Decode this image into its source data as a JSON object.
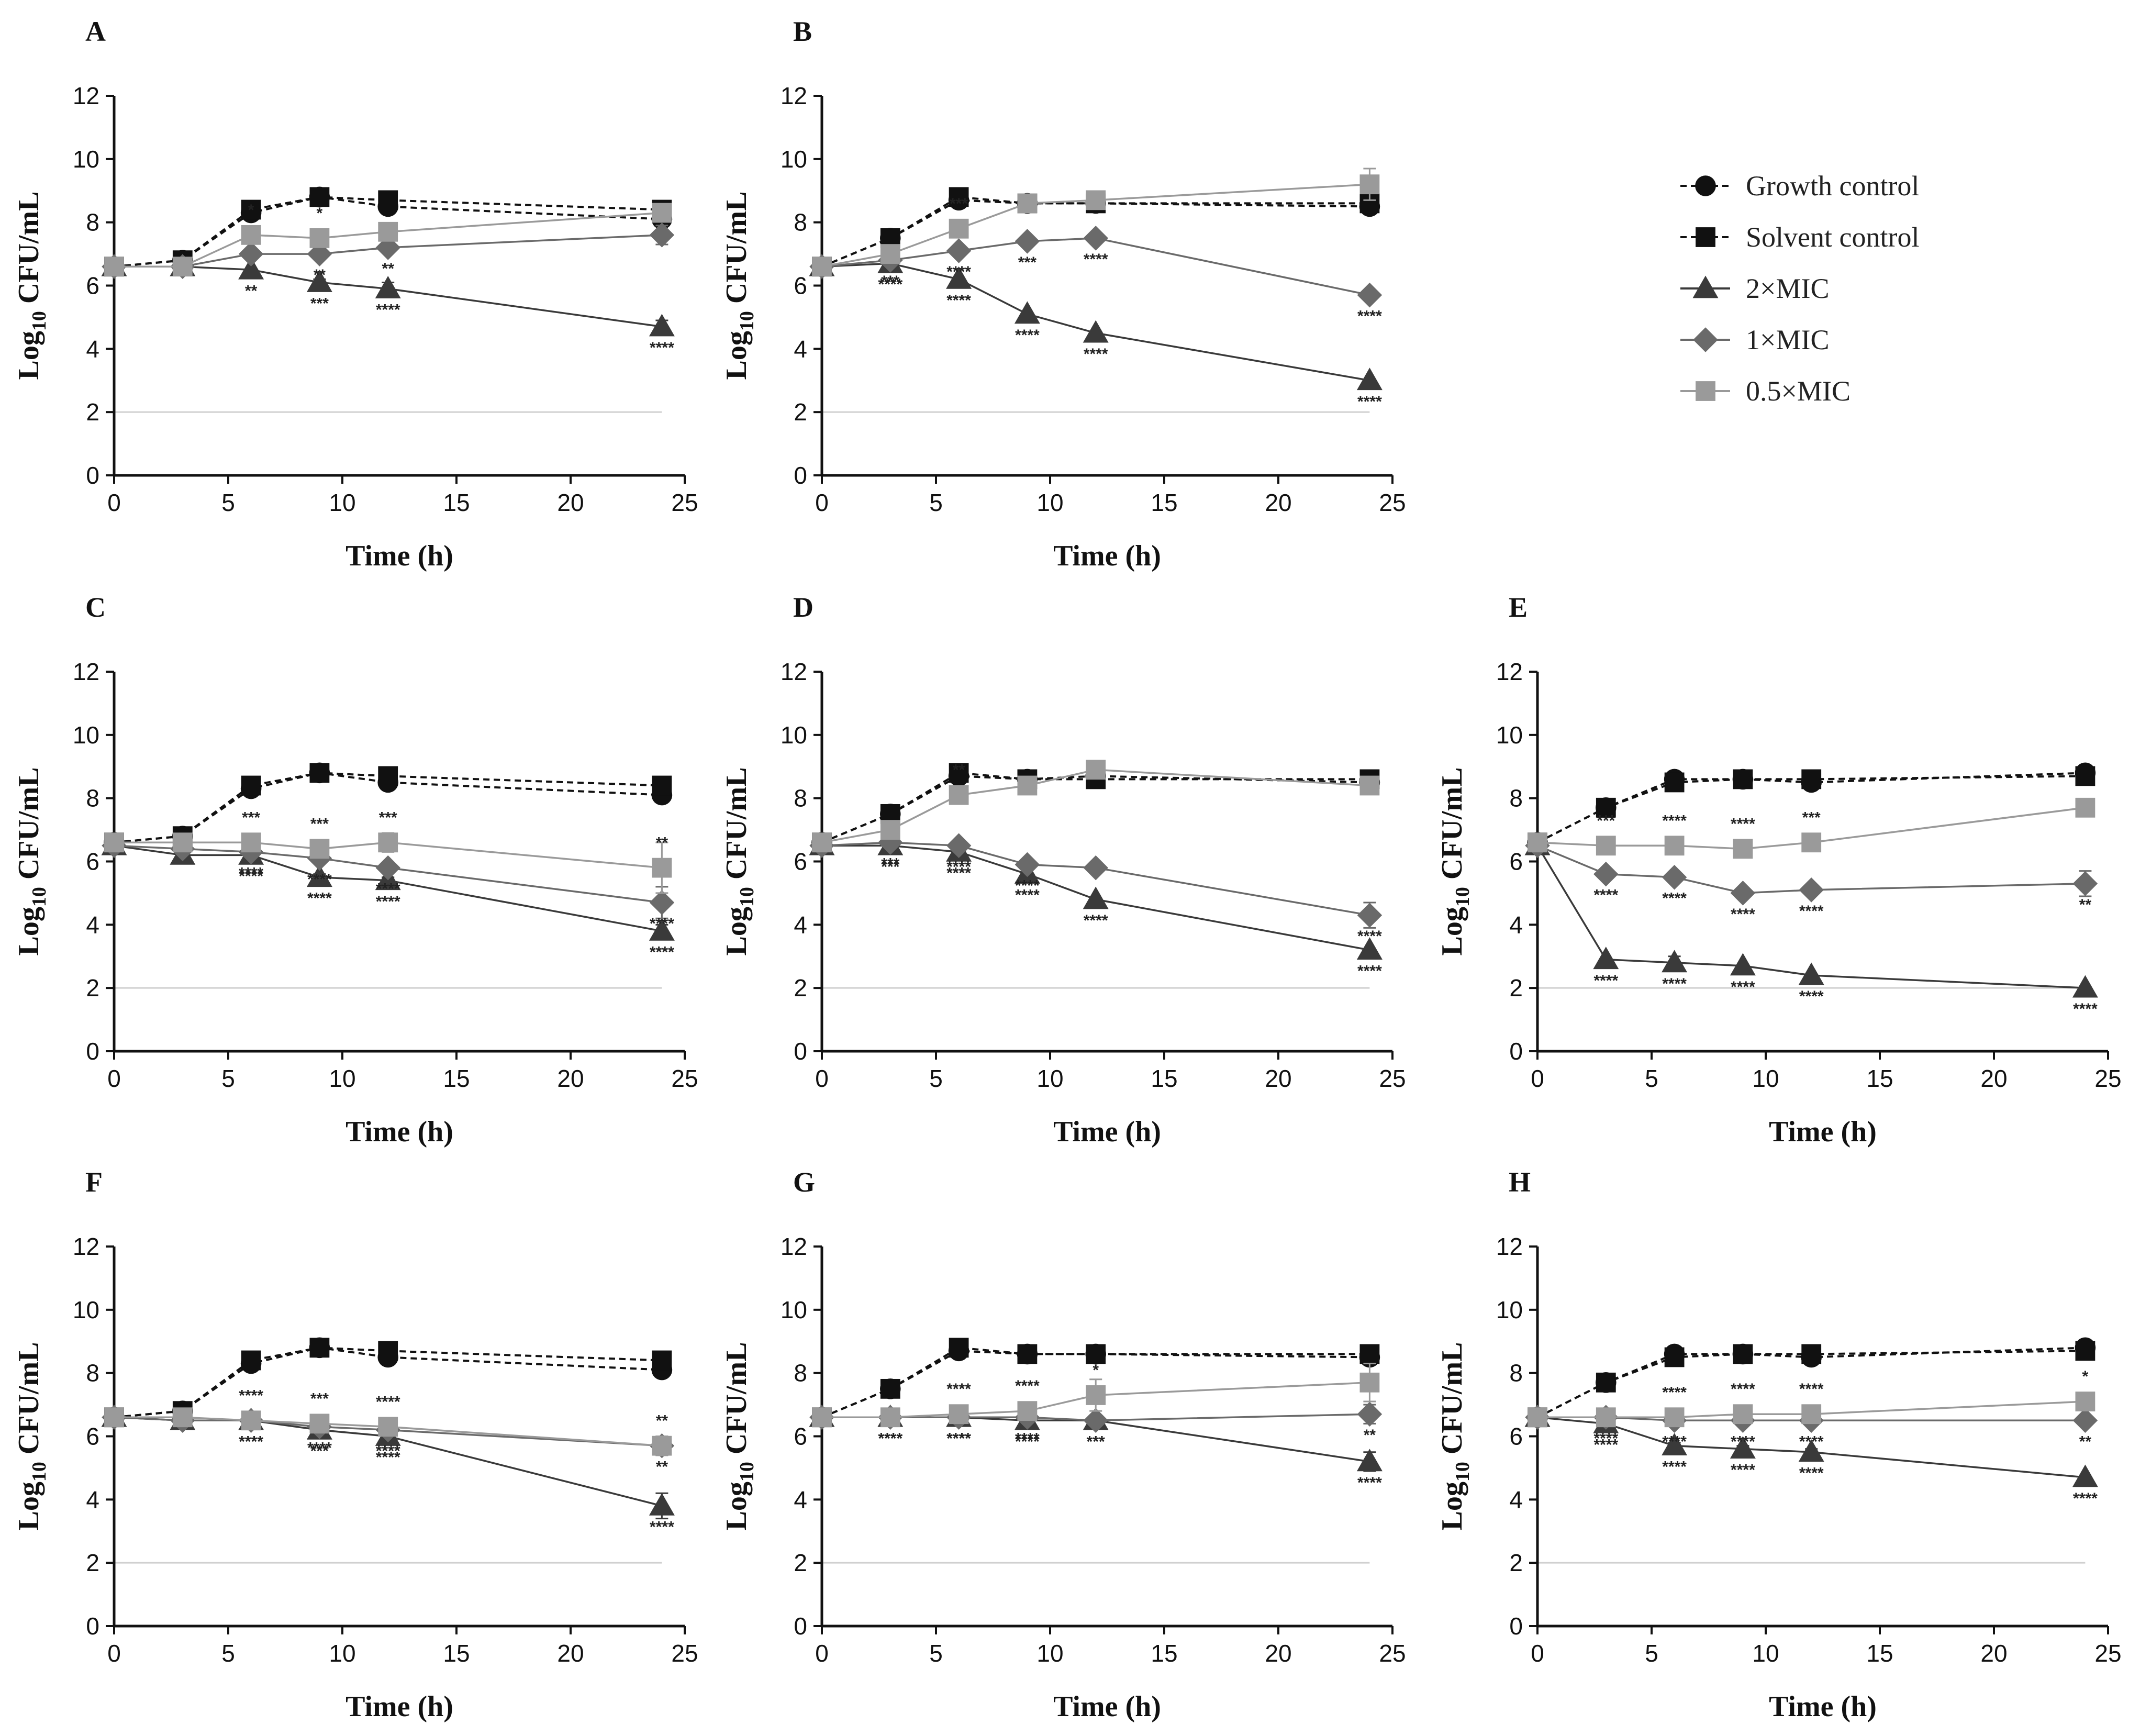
{
  "figure": {
    "xlabel": "Time (h)",
    "ylabel_main": "Log",
    "ylabel_sub": "10",
    "ylabel_tail": " CFU/mL",
    "xticks": [
      0,
      5,
      10,
      15,
      20,
      25
    ],
    "yticks": [
      0,
      2,
      4,
      6,
      8,
      10,
      12
    ],
    "xlim": [
      0,
      25
    ],
    "ylim": [
      0,
      12
    ],
    "detection_limit": 2,
    "time_points": [
      0,
      3,
      6,
      9,
      12,
      24
    ]
  },
  "legend": {
    "position": "top-right",
    "items": [
      {
        "key": "gc",
        "label": "Growth control"
      },
      {
        "key": "sc",
        "label": "Solvent control"
      },
      {
        "key": "m2",
        "label": "2×MIC"
      },
      {
        "key": "m1",
        "label": "1×MIC"
      },
      {
        "key": "m05",
        "label": "0.5×MIC"
      }
    ]
  },
  "series_style": {
    "gc": {
      "color": "#111111",
      "marker": "circle",
      "dashed": true
    },
    "sc": {
      "color": "#111111",
      "marker": "square",
      "dashed": true
    },
    "m2": {
      "color": "#3a3a3a",
      "marker": "triangle",
      "dashed": false
    },
    "m1": {
      "color": "#6a6a6a",
      "marker": "diamond",
      "dashed": false
    },
    "m05": {
      "color": "#9a9a9a",
      "marker": "square",
      "dashed": false
    }
  },
  "chart_data": [
    {
      "type": "line",
      "panel": "A",
      "title": "A",
      "xlabel": "Time (h)",
      "ylabel": "Log10 CFU/mL",
      "xlim": [
        0,
        25
      ],
      "ylim": [
        0,
        12
      ],
      "series": [
        {
          "key": "gc",
          "name": "Growth control",
          "values": [
            6.6,
            6.8,
            8.3,
            8.8,
            8.5,
            8.1
          ]
        },
        {
          "key": "sc",
          "name": "Solvent control",
          "values": [
            6.6,
            6.8,
            8.4,
            8.8,
            8.7,
            8.4
          ]
        },
        {
          "key": "m2",
          "name": "2×MIC",
          "values": [
            6.6,
            6.6,
            6.5,
            6.1,
            5.9,
            4.7
          ],
          "err": [
            0,
            0,
            0,
            0.1,
            0.2,
            0.2
          ],
          "sig": [
            "",
            "",
            "**",
            "***",
            "****",
            "****"
          ]
        },
        {
          "key": "m1",
          "name": "1×MIC",
          "values": [
            6.6,
            6.6,
            7.0,
            7.0,
            7.2,
            7.6
          ],
          "err": [
            0,
            0,
            0,
            0,
            0.1,
            0.3
          ],
          "sig": [
            "",
            "",
            "",
            "**",
            "**",
            ""
          ]
        },
        {
          "key": "m05",
          "name": "0.5×MIC",
          "values": [
            6.6,
            6.6,
            7.6,
            7.5,
            7.7,
            8.3
          ],
          "err": [
            0,
            0,
            0.1,
            0.1,
            0.1,
            0.2
          ],
          "sig": [
            "",
            "",
            "*",
            "*",
            "",
            ""
          ]
        }
      ]
    },
    {
      "type": "line",
      "panel": "B",
      "title": "B",
      "xlabel": "Time (h)",
      "ylabel": "Log10 CFU/mL",
      "xlim": [
        0,
        25
      ],
      "ylim": [
        0,
        12
      ],
      "series": [
        {
          "key": "gc",
          "name": "Growth control",
          "values": [
            6.6,
            7.5,
            8.7,
            8.6,
            8.6,
            8.5
          ]
        },
        {
          "key": "sc",
          "name": "Solvent control",
          "values": [
            6.6,
            7.5,
            8.8,
            8.6,
            8.6,
            8.6
          ]
        },
        {
          "key": "m2",
          "name": "2×MIC",
          "values": [
            6.6,
            6.7,
            6.2,
            5.1,
            4.5,
            3.0
          ],
          "err": [
            0,
            0,
            0,
            0,
            0,
            0
          ],
          "sig": [
            "",
            "****",
            "****",
            "****",
            "****",
            "****"
          ]
        },
        {
          "key": "m1",
          "name": "1×MIC",
          "values": [
            6.6,
            6.8,
            7.1,
            7.4,
            7.5,
            5.7
          ],
          "err": [
            0,
            0,
            0,
            0,
            0,
            0
          ],
          "sig": [
            "",
            "***",
            "****",
            "***",
            "****",
            "****"
          ]
        },
        {
          "key": "m05",
          "name": "0.5×MIC",
          "values": [
            6.6,
            7.0,
            7.8,
            8.6,
            8.7,
            9.2
          ],
          "err": [
            0,
            0,
            0,
            0,
            0.1,
            0.5
          ],
          "sig": [
            "",
            "",
            "***",
            "",
            "",
            ""
          ]
        }
      ]
    },
    {
      "type": "line",
      "panel": "C",
      "title": "C",
      "xlabel": "Time (h)",
      "ylabel": "Log10 CFU/mL",
      "xlim": [
        0,
        25
      ],
      "ylim": [
        0,
        12
      ],
      "series": [
        {
          "key": "gc",
          "name": "Growth control",
          "values": [
            6.6,
            6.8,
            8.3,
            8.8,
            8.5,
            8.1
          ]
        },
        {
          "key": "sc",
          "name": "Solvent control",
          "values": [
            6.6,
            6.8,
            8.4,
            8.8,
            8.7,
            8.4
          ]
        },
        {
          "key": "m2",
          "name": "2×MIC",
          "values": [
            6.5,
            6.2,
            6.2,
            5.5,
            5.4,
            3.8
          ],
          "err": [
            0,
            0,
            0.1,
            0.1,
            0.1,
            0.2
          ],
          "sig": [
            "",
            "",
            "****",
            "****",
            "****",
            "****"
          ]
        },
        {
          "key": "m1",
          "name": "1×MIC",
          "values": [
            6.5,
            6.4,
            6.3,
            6.1,
            5.8,
            4.7
          ],
          "err": [
            0,
            0,
            0,
            0,
            0.1,
            0.5
          ],
          "sig": [
            "",
            "",
            "****",
            "****",
            "****",
            "****"
          ]
        },
        {
          "key": "m05",
          "name": "0.5×MIC",
          "values": [
            6.6,
            6.6,
            6.6,
            6.4,
            6.6,
            5.8
          ],
          "err": [
            0,
            0,
            0.1,
            0.1,
            0.3,
            0.8
          ],
          "sig": [
            "",
            "",
            "***",
            "***",
            "***",
            "**"
          ]
        }
      ]
    },
    {
      "type": "line",
      "panel": "D",
      "title": "D",
      "xlabel": "Time (h)",
      "ylabel": "Log10 CFU/mL",
      "xlim": [
        0,
        25
      ],
      "ylim": [
        0,
        12
      ],
      "series": [
        {
          "key": "gc",
          "name": "Growth control",
          "values": [
            6.6,
            7.5,
            8.7,
            8.6,
            8.7,
            8.5
          ]
        },
        {
          "key": "sc",
          "name": "Solvent control",
          "values": [
            6.6,
            7.5,
            8.8,
            8.6,
            8.6,
            8.6
          ]
        },
        {
          "key": "m2",
          "name": "2×MIC",
          "values": [
            6.5,
            6.5,
            6.3,
            5.6,
            4.8,
            3.2
          ],
          "err": [
            0,
            0,
            0,
            0,
            0,
            0
          ],
          "sig": [
            "",
            "***",
            "****",
            "****",
            "****",
            "****"
          ]
        },
        {
          "key": "m1",
          "name": "1×MIC",
          "values": [
            6.5,
            6.6,
            6.5,
            5.9,
            5.8,
            4.3
          ],
          "err": [
            0,
            0,
            0,
            0,
            0,
            0.4
          ],
          "sig": [
            "",
            "***",
            "****",
            "****",
            "",
            "****"
          ]
        },
        {
          "key": "m05",
          "name": "0.5×MIC",
          "values": [
            6.6,
            7.0,
            8.1,
            8.4,
            8.9,
            8.4
          ],
          "err": [
            0,
            0,
            0,
            0.1,
            0.1,
            0.1
          ],
          "sig": [
            "",
            "",
            "**",
            "",
            "",
            ""
          ]
        }
      ]
    },
    {
      "type": "line",
      "panel": "E",
      "title": "E",
      "xlabel": "Time (h)",
      "ylabel": "Log10 CFU/mL",
      "xlim": [
        0,
        25
      ],
      "ylim": [
        0,
        12
      ],
      "series": [
        {
          "key": "gc",
          "name": "Growth control",
          "values": [
            6.6,
            7.7,
            8.6,
            8.6,
            8.5,
            8.8
          ]
        },
        {
          "key": "sc",
          "name": "Solvent control",
          "values": [
            6.6,
            7.7,
            8.5,
            8.6,
            8.6,
            8.7
          ]
        },
        {
          "key": "m2",
          "name": "2×MIC",
          "values": [
            6.5,
            2.9,
            2.8,
            2.7,
            2.4,
            2.0
          ],
          "err": [
            0,
            0,
            0.2,
            0,
            0,
            0
          ],
          "sig": [
            "",
            "****",
            "****",
            "****",
            "****",
            "****"
          ]
        },
        {
          "key": "m1",
          "name": "1×MIC",
          "values": [
            6.5,
            5.6,
            5.5,
            5.0,
            5.1,
            5.3
          ],
          "err": [
            0,
            0,
            0,
            0,
            0,
            0.4
          ],
          "sig": [
            "",
            "****",
            "****",
            "****",
            "****",
            "**"
          ]
        },
        {
          "key": "m05",
          "name": "0.5×MIC",
          "values": [
            6.6,
            6.5,
            6.5,
            6.4,
            6.6,
            7.7
          ],
          "err": [
            0,
            0,
            0,
            0,
            0.1,
            0.2
          ],
          "sig": [
            "",
            "***",
            "****",
            "****",
            "***",
            ""
          ]
        }
      ]
    },
    {
      "type": "line",
      "panel": "F",
      "title": "F",
      "xlabel": "Time (h)",
      "ylabel": "Log10 CFU/mL",
      "xlim": [
        0,
        25
      ],
      "ylim": [
        0,
        12
      ],
      "series": [
        {
          "key": "gc",
          "name": "Growth control",
          "values": [
            6.6,
            6.8,
            8.3,
            8.8,
            8.5,
            8.1
          ]
        },
        {
          "key": "sc",
          "name": "Solvent control",
          "values": [
            6.6,
            6.8,
            8.4,
            8.8,
            8.7,
            8.4
          ]
        },
        {
          "key": "m2",
          "name": "2×MIC",
          "values": [
            6.6,
            6.5,
            6.5,
            6.2,
            6.0,
            3.8
          ],
          "err": [
            0,
            0,
            0,
            0.2,
            0.1,
            0.4
          ],
          "sig": [
            "",
            "",
            "****",
            "***",
            "****",
            "****"
          ]
        },
        {
          "key": "m1",
          "name": "1×MIC",
          "values": [
            6.6,
            6.5,
            6.5,
            6.3,
            6.2,
            5.7
          ],
          "err": [
            0,
            0,
            0,
            0.1,
            0.1,
            0.3
          ],
          "sig": [
            "",
            "",
            "****",
            "****",
            "****",
            "**"
          ]
        },
        {
          "key": "m05",
          "name": "0.5×MIC",
          "values": [
            6.6,
            6.6,
            6.5,
            6.4,
            6.3,
            5.7
          ],
          "err": [
            0,
            0,
            0,
            0.1,
            0.1,
            0.3
          ],
          "sig": [
            "",
            "",
            "****",
            "***",
            "****",
            "**"
          ]
        }
      ]
    },
    {
      "type": "line",
      "panel": "G",
      "title": "G",
      "xlabel": "Time (h)",
      "ylabel": "Log10 CFU/mL",
      "xlim": [
        0,
        25
      ],
      "ylim": [
        0,
        12
      ],
      "series": [
        {
          "key": "gc",
          "name": "Growth control",
          "values": [
            6.6,
            7.5,
            8.7,
            8.6,
            8.6,
            8.5
          ]
        },
        {
          "key": "sc",
          "name": "Solvent control",
          "values": [
            6.6,
            7.5,
            8.8,
            8.6,
            8.6,
            8.6
          ]
        },
        {
          "key": "m2",
          "name": "2×MIC",
          "values": [
            6.6,
            6.6,
            6.6,
            6.5,
            6.5,
            5.2
          ],
          "err": [
            0,
            0,
            0,
            0,
            0,
            0.3
          ],
          "sig": [
            "",
            "****",
            "****",
            "****",
            "***",
            "****"
          ]
        },
        {
          "key": "m1",
          "name": "1×MIC",
          "values": [
            6.6,
            6.6,
            6.6,
            6.6,
            6.5,
            6.7
          ],
          "err": [
            0,
            0,
            0,
            0,
            0,
            0.3
          ],
          "sig": [
            "",
            "****",
            "****",
            "****",
            "***",
            "**"
          ]
        },
        {
          "key": "m05",
          "name": "0.5×MIC",
          "values": [
            6.6,
            6.6,
            6.7,
            6.8,
            7.3,
            7.7
          ],
          "err": [
            0,
            0,
            0,
            0.1,
            0.5,
            0.6
          ],
          "sig": [
            "",
            "",
            "****",
            "****",
            "*",
            ""
          ]
        }
      ]
    },
    {
      "type": "line",
      "panel": "H",
      "title": "H",
      "xlabel": "Time (h)",
      "ylabel": "Log10 CFU/mL",
      "xlim": [
        0,
        25
      ],
      "ylim": [
        0,
        12
      ],
      "series": [
        {
          "key": "gc",
          "name": "Growth control",
          "values": [
            6.6,
            7.7,
            8.6,
            8.6,
            8.5,
            8.8
          ]
        },
        {
          "key": "sc",
          "name": "Solvent control",
          "values": [
            6.6,
            7.7,
            8.5,
            8.6,
            8.6,
            8.7
          ]
        },
        {
          "key": "m2",
          "name": "2×MIC",
          "values": [
            6.6,
            6.4,
            5.7,
            5.6,
            5.5,
            4.7
          ],
          "err": [
            0,
            0,
            0.1,
            0.1,
            0.1,
            0
          ],
          "sig": [
            "",
            "****",
            "****",
            "****",
            "****",
            "****"
          ]
        },
        {
          "key": "m1",
          "name": "1×MIC",
          "values": [
            6.6,
            6.6,
            6.5,
            6.5,
            6.5,
            6.5
          ],
          "err": [
            0,
            0,
            0,
            0,
            0,
            0
          ],
          "sig": [
            "",
            "****",
            "****",
            "****",
            "****",
            "**"
          ]
        },
        {
          "key": "m05",
          "name": "0.5×MIC",
          "values": [
            6.6,
            6.6,
            6.6,
            6.7,
            6.7,
            7.1
          ],
          "err": [
            0,
            0,
            0,
            0,
            0,
            0.2
          ],
          "sig": [
            "",
            "",
            "****",
            "****",
            "****",
            "*"
          ]
        }
      ]
    }
  ]
}
